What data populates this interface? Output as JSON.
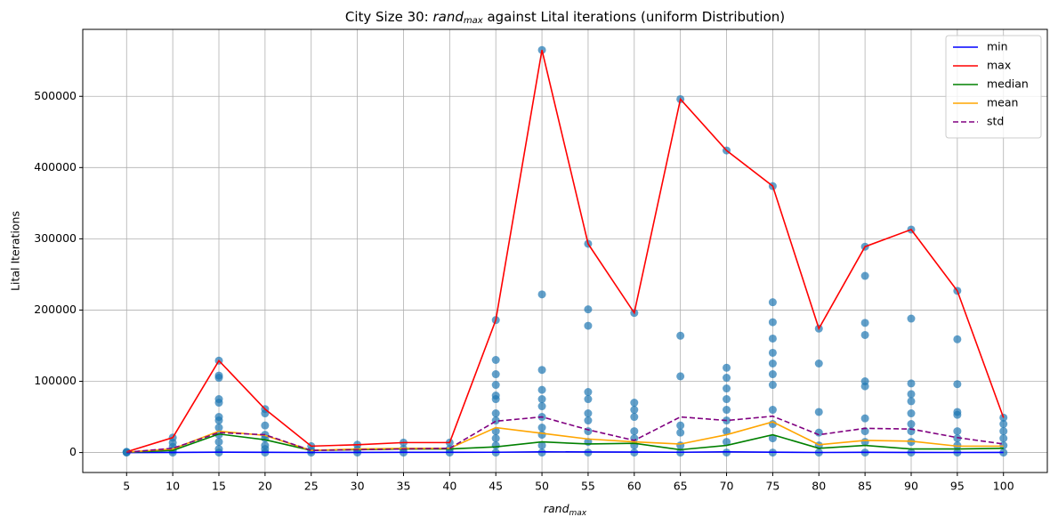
{
  "chart_data": {
    "type": "line",
    "title": {
      "before": "City Size 30: ",
      "var": "rand",
      "sub": "max",
      "after": " against Lital iterations (uniform Distribution)"
    },
    "xlabel": {
      "var": "rand",
      "sub": "max"
    },
    "ylabel": "Lital Iterations",
    "x": [
      5,
      10,
      15,
      20,
      25,
      30,
      35,
      40,
      45,
      50,
      55,
      60,
      65,
      70,
      75,
      80,
      85,
      90,
      95,
      100
    ],
    "series": [
      {
        "name": "min",
        "color": "#0000ff",
        "dash": false,
        "values": [
          0,
          200,
          500,
          300,
          100,
          200,
          300,
          300,
          400,
          1000,
          800,
          600,
          400,
          1000,
          500,
          100,
          300,
          200,
          100,
          200
        ]
      },
      {
        "name": "max",
        "color": "#ff0000",
        "dash": false,
        "values": [
          1000,
          21000,
          129000,
          61000,
          9000,
          11000,
          14000,
          14000,
          186000,
          565000,
          293000,
          196000,
          496000,
          424000,
          374000,
          174000,
          289000,
          313000,
          227000,
          49000
        ]
      },
      {
        "name": "median",
        "color": "#008000",
        "dash": false,
        "values": [
          500,
          3000,
          26000,
          18000,
          3000,
          4000,
          5000,
          5000,
          8000,
          15000,
          12000,
          13000,
          4000,
          10000,
          25000,
          6000,
          10000,
          5000,
          5000,
          6000
        ]
      },
      {
        "name": "mean",
        "color": "#ffa500",
        "dash": false,
        "values": [
          600,
          5000,
          30000,
          24000,
          3000,
          5000,
          6000,
          6000,
          35000,
          27000,
          19000,
          15000,
          12000,
          25000,
          43000,
          11000,
          17000,
          16000,
          9000,
          9000
        ]
      },
      {
        "name": "std",
        "color": "#800080",
        "dash": true,
        "values": [
          400,
          6000,
          28000,
          25000,
          3000,
          4000,
          5000,
          6000,
          44000,
          50000,
          32000,
          17000,
          50000,
          45000,
          51000,
          25000,
          34000,
          33000,
          21000,
          12000
        ]
      }
    ],
    "scatter": {
      "color": "#1f77b4",
      "groups": [
        {
          "x": 5,
          "y": [
            0,
            500,
            1000
          ]
        },
        {
          "x": 10,
          "y": [
            0,
            3000,
            8000,
            14000,
            21000
          ]
        },
        {
          "x": 15,
          "y": [
            0,
            5000,
            15000,
            25000,
            35000,
            45000,
            50000,
            70000,
            75000,
            105000,
            108000,
            129000
          ]
        },
        {
          "x": 20,
          "y": [
            0,
            5000,
            10000,
            20000,
            25000,
            38000,
            55000,
            61000
          ]
        },
        {
          "x": 25,
          "y": [
            0,
            3000,
            9000
          ]
        },
        {
          "x": 30,
          "y": [
            0,
            4000,
            11000
          ]
        },
        {
          "x": 35,
          "y": [
            0,
            5000,
            14000
          ]
        },
        {
          "x": 40,
          "y": [
            0,
            5000,
            14000
          ]
        },
        {
          "x": 45,
          "y": [
            0,
            10000,
            20000,
            30000,
            45000,
            55000,
            75000,
            80000,
            95000,
            110000,
            130000,
            186000
          ]
        },
        {
          "x": 50,
          "y": [
            0,
            10000,
            25000,
            35000,
            50000,
            65000,
            75000,
            88000,
            116000,
            222000,
            565000
          ]
        },
        {
          "x": 55,
          "y": [
            0,
            15000,
            30000,
            45000,
            55000,
            75000,
            85000,
            178000,
            201000,
            293000
          ]
        },
        {
          "x": 60,
          "y": [
            0,
            10000,
            20000,
            30000,
            50000,
            60000,
            70000,
            196000
          ]
        },
        {
          "x": 65,
          "y": [
            0,
            10000,
            28000,
            38000,
            107000,
            164000,
            496000
          ]
        },
        {
          "x": 70,
          "y": [
            0,
            15000,
            30000,
            45000,
            60000,
            75000,
            90000,
            105000,
            119000,
            424000
          ]
        },
        {
          "x": 75,
          "y": [
            0,
            20000,
            40000,
            60000,
            95000,
            110000,
            125000,
            140000,
            160000,
            183000,
            211000,
            374000
          ]
        },
        {
          "x": 80,
          "y": [
            0,
            10000,
            28000,
            57000,
            125000,
            174000
          ]
        },
        {
          "x": 85,
          "y": [
            0,
            15000,
            30000,
            48000,
            93000,
            100000,
            165000,
            182000,
            248000,
            289000
          ]
        },
        {
          "x": 90,
          "y": [
            0,
            15000,
            30000,
            40000,
            55000,
            72000,
            82000,
            97000,
            188000,
            313000
          ]
        },
        {
          "x": 95,
          "y": [
            0,
            10000,
            20000,
            30000,
            53000,
            57000,
            96000,
            159000,
            227000
          ]
        },
        {
          "x": 100,
          "y": [
            0,
            10000,
            20000,
            30000,
            40000,
            49000
          ]
        }
      ]
    },
    "xlim": [
      0.25,
      104.75
    ],
    "ylim": [
      -28000,
      594000
    ],
    "xticks": [
      5,
      10,
      15,
      20,
      25,
      30,
      35,
      40,
      45,
      50,
      55,
      60,
      65,
      70,
      75,
      80,
      85,
      90,
      95,
      100
    ],
    "yticks": [
      0,
      100000,
      200000,
      300000,
      400000,
      500000
    ],
    "grid": true,
    "legend": "upper-right"
  }
}
